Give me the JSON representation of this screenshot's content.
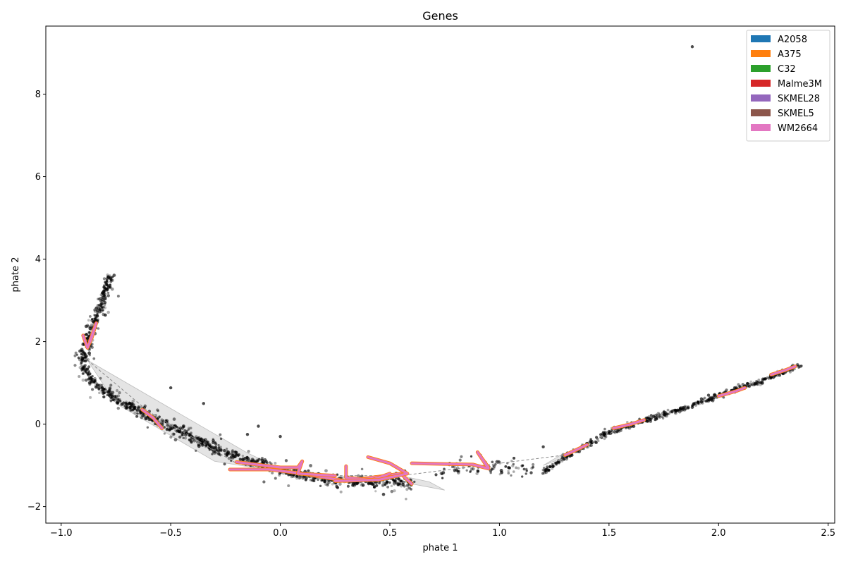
{
  "chart_data": {
    "type": "scatter",
    "title": "Genes",
    "xlabel": "phate 1",
    "ylabel": "phate 2",
    "xlim": [
      -1.07,
      2.53
    ],
    "ylim": [
      -2.4,
      9.65
    ],
    "x_ticks": [
      -1.0,
      -0.5,
      0.0,
      0.5,
      1.0,
      1.5,
      2.0,
      2.5
    ],
    "x_tick_labels": [
      "−1.0",
      "−0.5",
      "0.0",
      "0.5",
      "1.0",
      "1.5",
      "2.0",
      "2.5"
    ],
    "y_ticks": [
      -2,
      0,
      2,
      4,
      6,
      8
    ],
    "y_tick_labels": [
      "−2",
      "0",
      "2",
      "4",
      "6",
      "8"
    ],
    "grid": false,
    "legend_position": "top-right",
    "colors": {
      "points": "#000000",
      "hull": "#d9d9d9",
      "path": "#e377c2",
      "accent": "#ff7f0e"
    },
    "series": [
      {
        "name": "A2058",
        "color": "#1f77b4"
      },
      {
        "name": "A375",
        "color": "#ff7f0e"
      },
      {
        "name": "C32",
        "color": "#2ca02c"
      },
      {
        "name": "Malme3M",
        "color": "#d62728"
      },
      {
        "name": "SKMEL28",
        "color": "#9467bd"
      },
      {
        "name": "SKMEL5",
        "color": "#8c564b"
      },
      {
        "name": "WM2664",
        "color": "#e377c2"
      }
    ],
    "point_cloud": {
      "main_curve": [
        [
          -0.78,
          3.58
        ],
        [
          -0.82,
          2.9
        ],
        [
          -0.85,
          2.4
        ],
        [
          -0.88,
          2.0
        ],
        [
          -0.9,
          1.6
        ],
        [
          -0.89,
          1.3
        ],
        [
          -0.85,
          1.0
        ],
        [
          -0.75,
          0.6
        ],
        [
          -0.6,
          0.2
        ],
        [
          -0.45,
          -0.2
        ],
        [
          -0.3,
          -0.6
        ],
        [
          -0.1,
          -0.95
        ],
        [
          0.05,
          -1.2
        ],
        [
          0.2,
          -1.35
        ],
        [
          0.35,
          -1.4
        ],
        [
          0.5,
          -1.38
        ],
        [
          0.6,
          -1.45
        ]
      ],
      "right_curve": [
        [
          1.2,
          -1.15
        ],
        [
          1.3,
          -0.8
        ],
        [
          1.4,
          -0.5
        ],
        [
          1.5,
          -0.2
        ],
        [
          1.6,
          0.0
        ],
        [
          1.7,
          0.15
        ],
        [
          1.8,
          0.3
        ],
        [
          1.9,
          0.5
        ],
        [
          2.0,
          0.7
        ],
        [
          2.1,
          0.88
        ],
        [
          2.2,
          1.05
        ],
        [
          2.3,
          1.28
        ],
        [
          2.37,
          1.43
        ]
      ],
      "mid_segment": [
        [
          0.72,
          -1.2
        ],
        [
          0.85,
          -1.05
        ],
        [
          0.95,
          -1.0
        ],
        [
          1.05,
          -1.05
        ],
        [
          1.15,
          -1.2
        ]
      ],
      "outliers": [
        [
          1.88,
          9.15
        ],
        [
          -0.5,
          0.88
        ],
        [
          -0.35,
          0.5
        ],
        [
          -0.1,
          -0.05
        ],
        [
          0.0,
          -0.3
        ],
        [
          1.2,
          -0.55
        ],
        [
          -0.15,
          -0.25
        ],
        [
          -0.62,
          0.4
        ]
      ]
    },
    "hulls": [
      [
        [
          -0.88,
          1.55
        ],
        [
          -0.15,
          -0.7
        ],
        [
          0.05,
          -1.2
        ],
        [
          -0.3,
          -0.9
        ],
        [
          -0.75,
          0.5
        ]
      ],
      [
        [
          0.6,
          -1.45
        ],
        [
          0.55,
          -1.25
        ],
        [
          0.68,
          -1.4
        ],
        [
          0.75,
          -1.6
        ]
      ],
      [
        [
          1.2,
          -1.0
        ],
        [
          1.28,
          -0.75
        ],
        [
          1.4,
          -0.5
        ],
        [
          1.3,
          -0.8
        ]
      ]
    ],
    "dashed_path": [
      [
        -0.88,
        1.55
      ],
      [
        -0.6,
        0.3
      ],
      [
        -0.2,
        -0.95
      ],
      [
        0.1,
        -1.25
      ],
      [
        0.55,
        -1.25
      ],
      [
        1.0,
        -0.95
      ],
      [
        1.3,
        -0.75
      ],
      [
        1.4,
        -0.5
      ],
      [
        1.55,
        -0.1
      ]
    ],
    "trajectories": [
      [
        [
          -0.9,
          2.15
        ],
        [
          -0.88,
          1.85
        ],
        [
          -0.86,
          2.1
        ],
        [
          -0.84,
          2.45
        ],
        [
          -0.87,
          2.0
        ],
        [
          -0.85,
          2.3
        ]
      ],
      [
        [
          -0.63,
          0.35
        ],
        [
          -0.58,
          0.15
        ],
        [
          -0.54,
          -0.1
        ]
      ],
      [
        [
          -0.23,
          -1.1
        ],
        [
          -0.05,
          -1.1
        ],
        [
          0.1,
          -1.2
        ],
        [
          0.3,
          -1.38
        ],
        [
          0.55,
          -1.2
        ],
        [
          0.6,
          -1.45
        ]
      ],
      [
        [
          -0.2,
          -0.92
        ],
        [
          0.0,
          -1.05
        ],
        [
          0.08,
          -1.05
        ],
        [
          0.1,
          -0.9
        ],
        [
          0.08,
          -1.2
        ],
        [
          0.25,
          -1.25
        ]
      ],
      [
        [
          0.3,
          -1.02
        ],
        [
          0.3,
          -1.3
        ],
        [
          0.42,
          -1.35
        ],
        [
          0.5,
          -1.2
        ],
        [
          0.45,
          -1.3
        ]
      ],
      [
        [
          0.4,
          -0.8
        ],
        [
          0.5,
          -0.95
        ],
        [
          0.58,
          -1.2
        ],
        [
          0.45,
          -1.35
        ],
        [
          0.25,
          -1.38
        ]
      ],
      [
        [
          0.6,
          -0.95
        ],
        [
          0.88,
          -0.98
        ],
        [
          0.95,
          -1.08
        ],
        [
          0.9,
          -0.68
        ],
        [
          0.95,
          -1.05
        ]
      ],
      [
        [
          1.3,
          -0.75
        ],
        [
          1.36,
          -0.6
        ],
        [
          1.4,
          -0.5
        ]
      ],
      [
        [
          1.52,
          -0.1
        ],
        [
          1.6,
          0.0
        ],
        [
          1.66,
          0.1
        ]
      ],
      [
        [
          2.0,
          0.68
        ],
        [
          2.08,
          0.8
        ],
        [
          2.12,
          0.88
        ]
      ],
      [
        [
          2.24,
          1.2
        ],
        [
          2.3,
          1.3
        ],
        [
          2.35,
          1.4
        ]
      ]
    ]
  }
}
